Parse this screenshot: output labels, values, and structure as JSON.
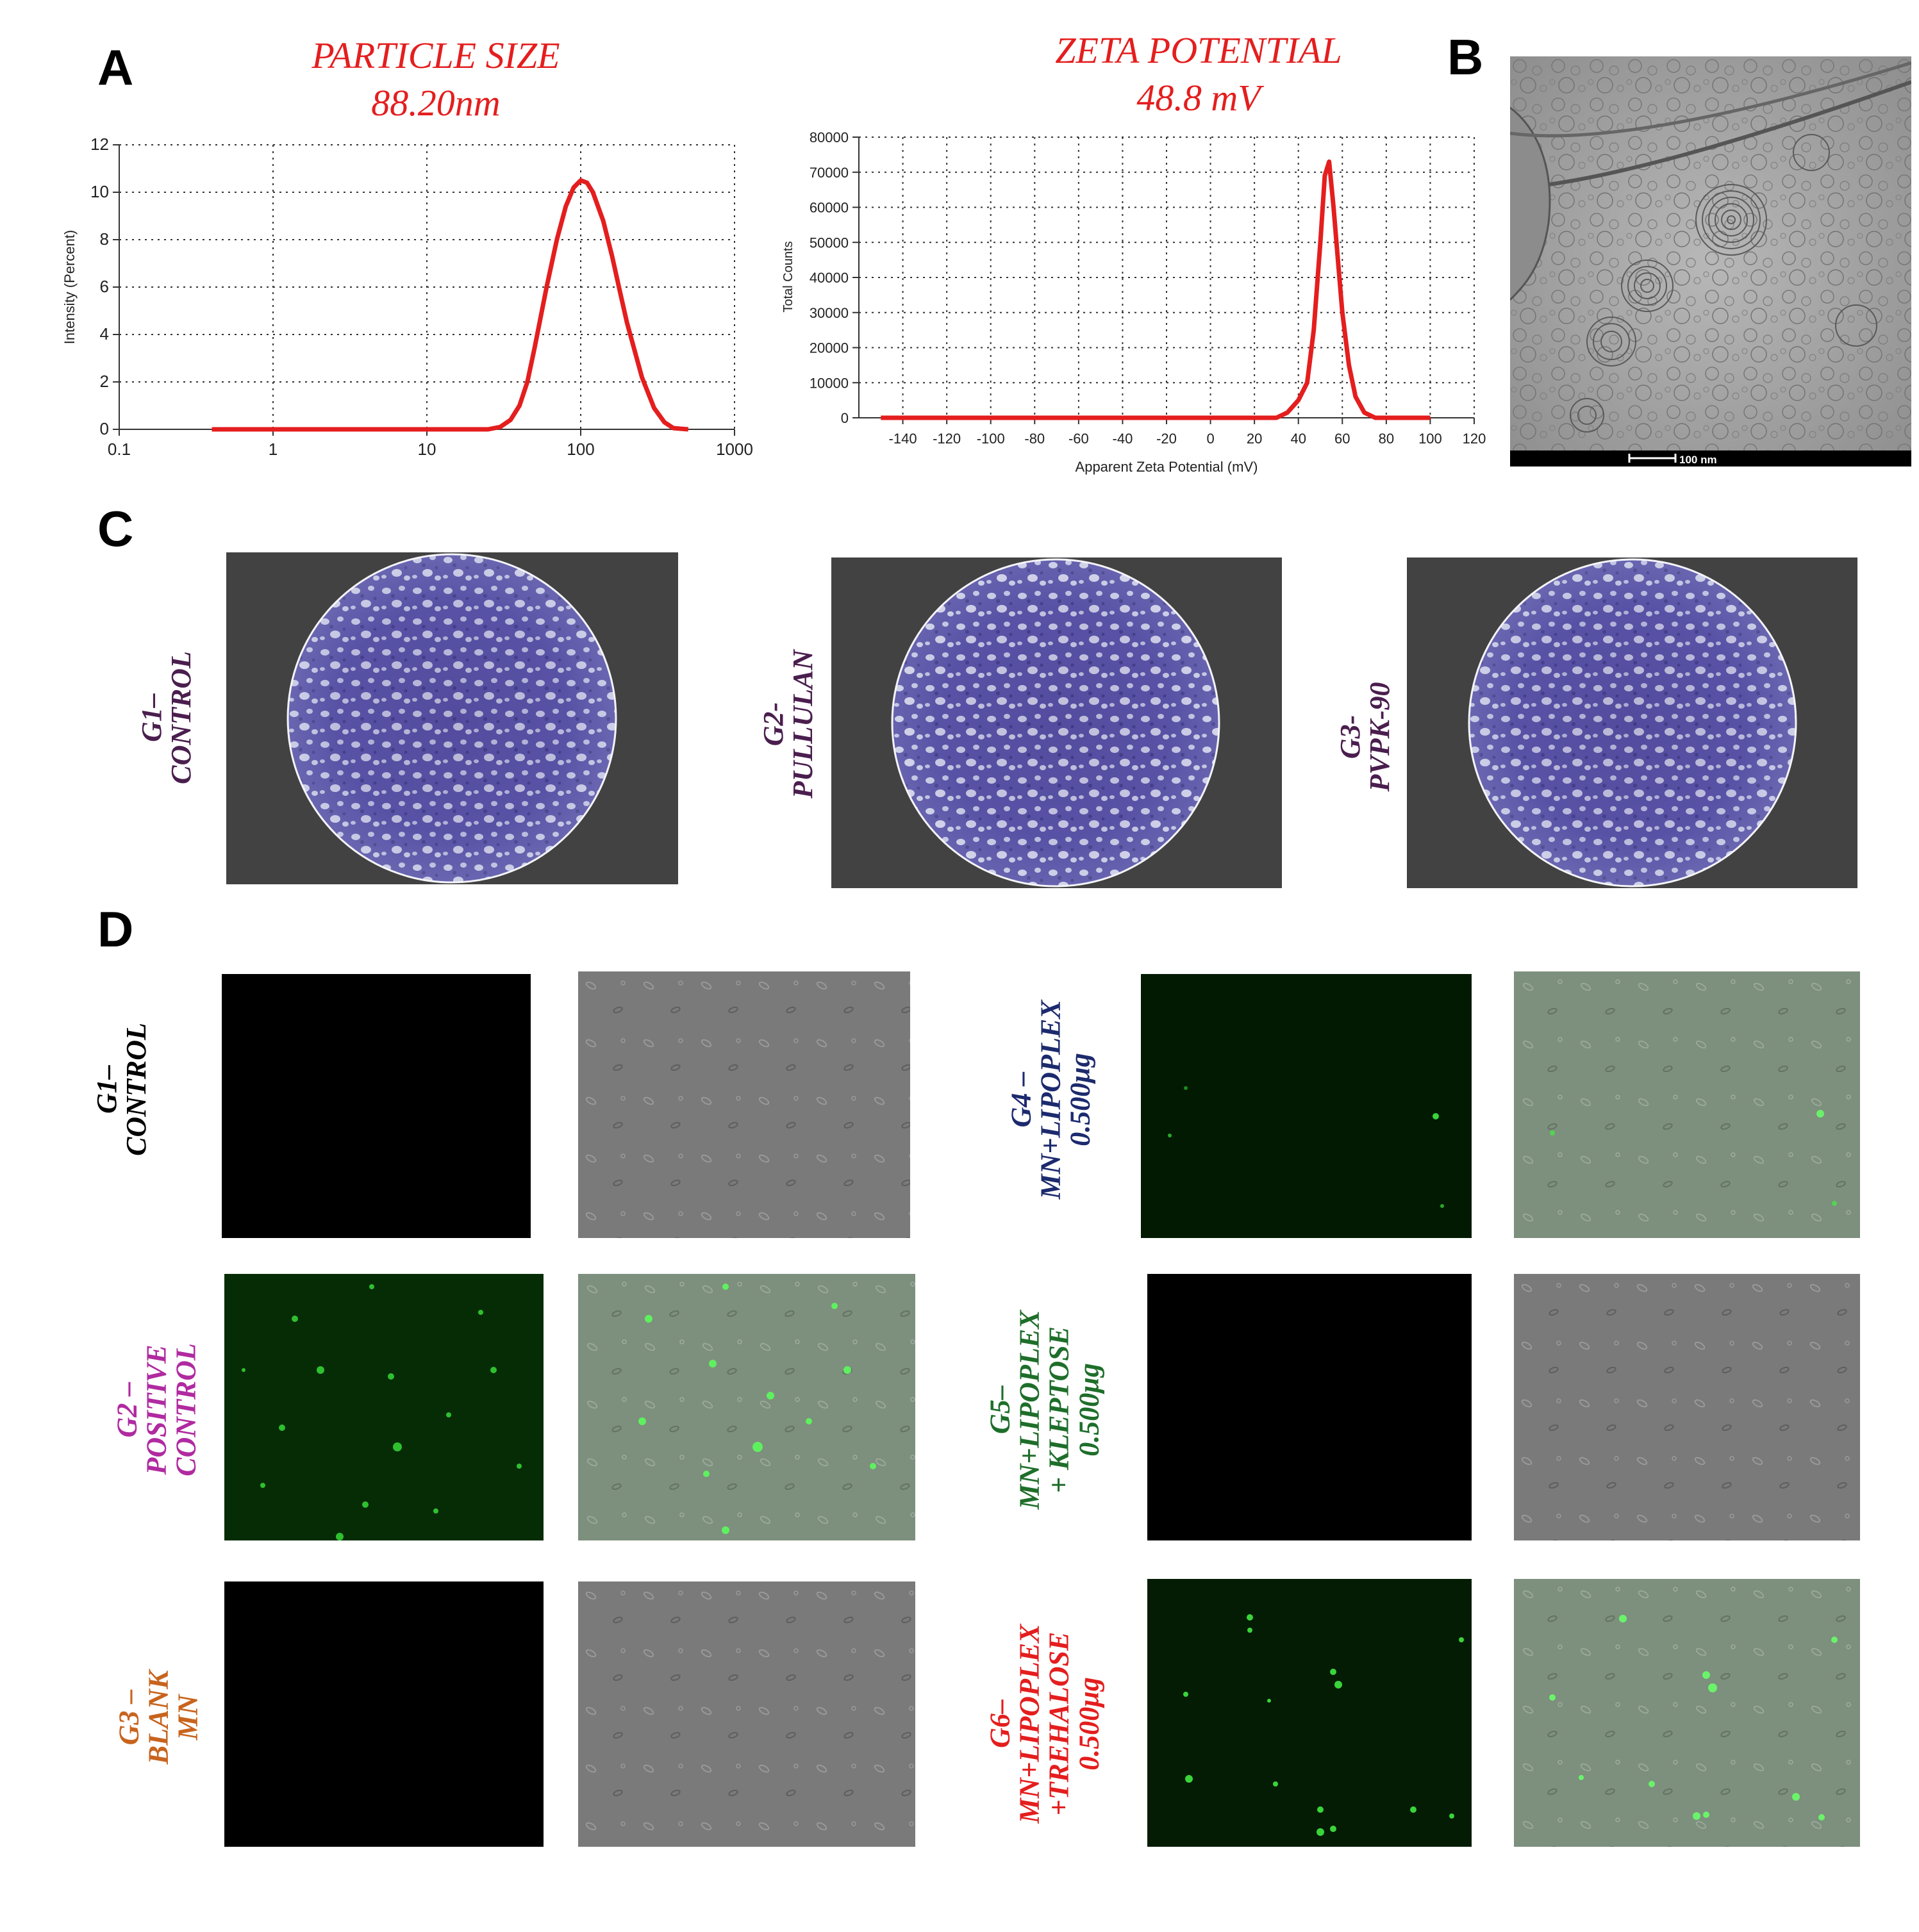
{
  "panels": {
    "a": "A",
    "b": "B",
    "c": "C",
    "d": "D"
  },
  "colors": {
    "curve": "#e41e1e",
    "group_purple": "#4a1e4e",
    "navy": "#1c2a6e",
    "magenta": "#b02aa0",
    "green": "#1e6e2a",
    "orange": "#c8641e",
    "red": "#e41e1e"
  },
  "particle_size": {
    "title": "PARTICLE SIZE",
    "value": "88.20nm"
  },
  "zeta_potential": {
    "title": "ZETA POTENTIAL",
    "value": "48.8 mV"
  },
  "chart_data": [
    {
      "type": "line",
      "ylabel": "Intensity (Percent)",
      "xlabel": "",
      "x_scale": "log",
      "xlim": [
        0.1,
        1000
      ],
      "ylim": [
        0,
        12
      ],
      "x_ticks": [
        "0.1",
        "1",
        "10",
        "100",
        "1000"
      ],
      "y_ticks": [
        "0",
        "2",
        "4",
        "6",
        "8",
        "10",
        "12"
      ],
      "grid": true,
      "series": [
        {
          "x": [
            0.4,
            1,
            10,
            25,
            30,
            35,
            40,
            45,
            50,
            60,
            70,
            80,
            90,
            100,
            110,
            120,
            140,
            160,
            180,
            200,
            250,
            300,
            350,
            400,
            500
          ],
          "y": [
            0,
            0,
            0,
            0,
            0.1,
            0.4,
            1.0,
            2.0,
            3.4,
            6.0,
            8.0,
            9.4,
            10.2,
            10.5,
            10.4,
            10.0,
            8.8,
            7.3,
            5.8,
            4.5,
            2.2,
            0.9,
            0.3,
            0.05,
            0
          ]
        }
      ]
    },
    {
      "type": "line",
      "ylabel": "Total Counts",
      "xlabel": "Apparent Zeta Potential (mV)",
      "xlim": [
        -160,
        120
      ],
      "ylim": [
        0,
        80000
      ],
      "x_ticks": [
        "-140",
        "-120",
        "-100",
        "-80",
        "-60",
        "-40",
        "-20",
        "0",
        "20",
        "40",
        "60",
        "80",
        "100",
        "120"
      ],
      "y_ticks": [
        "0",
        "10000",
        "20000",
        "30000",
        "40000",
        "50000",
        "60000",
        "70000",
        "80000"
      ],
      "grid": true,
      "series": [
        {
          "x": [
            -150,
            0,
            30,
            35,
            40,
            44,
            47,
            50,
            52,
            54,
            56,
            58,
            60,
            63,
            66,
            70,
            75,
            100
          ],
          "y": [
            0,
            0,
            0,
            1500,
            5000,
            10000,
            25000,
            50000,
            69000,
            73000,
            60000,
            45000,
            30000,
            15000,
            6000,
            1500,
            0,
            0
          ]
        }
      ]
    }
  ],
  "tem": {
    "scale_bar": "100 nm"
  },
  "panel_c": [
    {
      "l1": "G1–",
      "l2": "CONTROL"
    },
    {
      "l1": "G2-",
      "l2": "PULLULAN"
    },
    {
      "l1": "G3-",
      "l2": "PVPK-90"
    }
  ],
  "panel_d": {
    "g1": [
      "G1–",
      "CONTROL"
    ],
    "g2": [
      "G2 –",
      "POSITIVE",
      "CONTROL"
    ],
    "g3": [
      "G3 –",
      "BLANK",
      "MN"
    ],
    "g4": [
      "G4 –",
      "MN+LIPOPLEX",
      "0.500μg"
    ],
    "g5": [
      "G5–",
      "MN+LIPOPLEX",
      "+ KLEPTOSE",
      "0.500μg"
    ],
    "g6": [
      "G6–",
      "MN+LIPOPLEX",
      "+TREHALOSE",
      "0.500μg"
    ]
  }
}
